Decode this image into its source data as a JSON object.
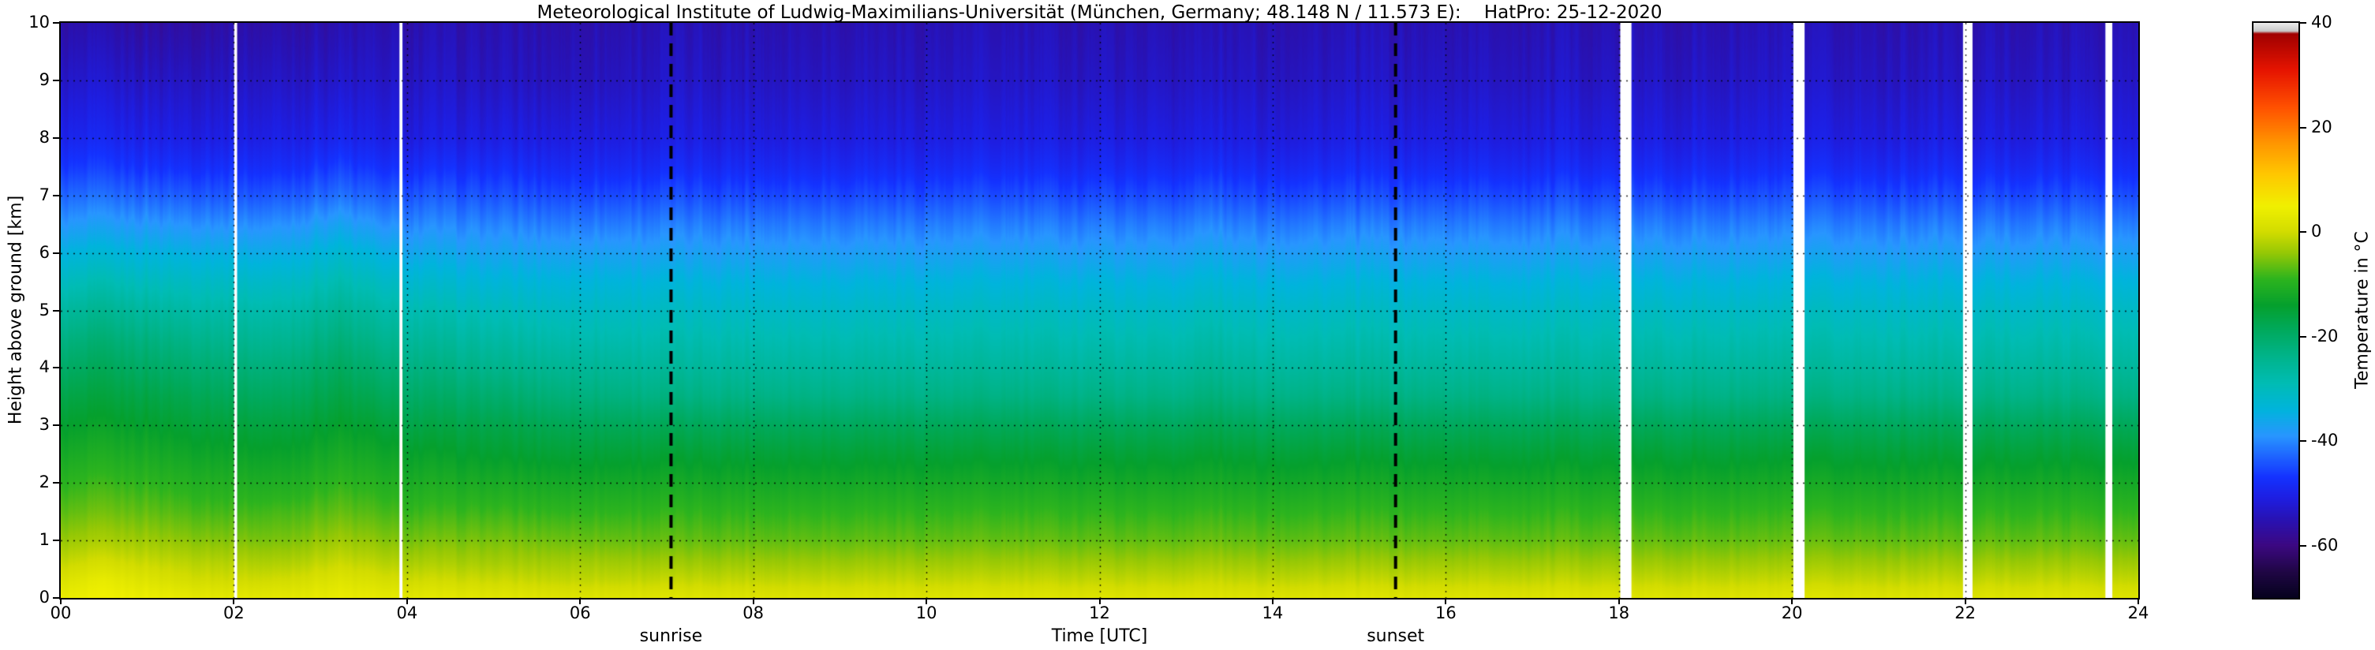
{
  "title": "Meteorological Institute of Ludwig-Maximilians-Universität (München, Germany; 48.148 N / 11.573 E):    HatPro: 25-12-2020",
  "xlabel": "Time [UTC]",
  "ylabel": "Height above ground [km]",
  "colorbar_label": "Temperature in °C",
  "annotations": {
    "sunrise": {
      "label": "sunrise",
      "time": 7.05
    },
    "sunset": {
      "label": "sunset",
      "time": 15.42
    }
  },
  "chart_data": {
    "type": "heatmap",
    "title": "HatPro temperature profile 25-12-2020",
    "x_range": [
      0,
      24
    ],
    "y_range": [
      0,
      10
    ],
    "x_ticks": [
      "00",
      "02",
      "04",
      "06",
      "08",
      "10",
      "12",
      "14",
      "16",
      "18",
      "20",
      "22",
      "24"
    ],
    "x_tick_values": [
      0,
      2,
      4,
      6,
      8,
      10,
      12,
      14,
      16,
      18,
      20,
      22,
      24
    ],
    "y_ticks": [
      "0",
      "1",
      "2",
      "3",
      "4",
      "5",
      "6",
      "7",
      "8",
      "9",
      "10"
    ],
    "y_tick_values": [
      0,
      1,
      2,
      3,
      4,
      5,
      6,
      7,
      8,
      9,
      10
    ],
    "grid": {
      "style": "dotted",
      "x_step": 2,
      "y_step": 1
    },
    "colorbar": {
      "range": [
        -70,
        40
      ],
      "ticks": [
        "40",
        "20",
        "0",
        "-20",
        "-40",
        "-60"
      ],
      "tick_values": [
        40,
        20,
        0,
        -20,
        -40,
        -60
      ],
      "stops": [
        [
          -70,
          "#06021e"
        ],
        [
          -65,
          "#200646"
        ],
        [
          -60,
          "#3c0882"
        ],
        [
          -55,
          "#2812b4"
        ],
        [
          -51,
          "#1e1ee1"
        ],
        [
          -47,
          "#1432ff"
        ],
        [
          -43,
          "#1e64ff"
        ],
        [
          -39,
          "#2896ff"
        ],
        [
          -34,
          "#00b4dc"
        ],
        [
          -29,
          "#00bcb4"
        ],
        [
          -24,
          "#00b48c"
        ],
        [
          -19,
          "#00aa5f"
        ],
        [
          -14,
          "#05a02d"
        ],
        [
          -9,
          "#2db41e"
        ],
        [
          -4,
          "#96c805"
        ],
        [
          0,
          "#d2dc00"
        ],
        [
          5,
          "#f0f000"
        ],
        [
          11,
          "#ffc800"
        ],
        [
          17,
          "#ff9600"
        ],
        [
          24,
          "#ff5000"
        ],
        [
          31,
          "#e61400"
        ],
        [
          38,
          "#a00000"
        ],
        [
          38.5,
          "#c8c8c8"
        ],
        [
          40,
          "#ebebeb"
        ]
      ]
    },
    "heights": [
      0,
      0.3,
      0.6,
      1,
      1.5,
      2,
      2.5,
      3,
      3.5,
      4,
      4.5,
      5,
      5.5,
      6,
      6.5,
      7,
      7.5,
      8,
      9,
      10
    ],
    "times": [
      0,
      0.5,
      1,
      1.5,
      2,
      2.5,
      3.2,
      3.6,
      4,
      5,
      6,
      7,
      9,
      12,
      13,
      13.3,
      13.6,
      15,
      18,
      21,
      24
    ],
    "temperature": [
      [
        4,
        1.5,
        -1,
        -4,
        -7,
        -9.5,
        -12,
        -14.5,
        -17,
        -20,
        -23,
        -26.5,
        -30.5,
        -34.5,
        -39,
        -43,
        -47,
        -50,
        -53.5,
        -56.5
      ],
      [
        5,
        3.5,
        0.5,
        -3,
        -6,
        -8.5,
        -11,
        -13.5,
        -16,
        -18.5,
        -21.5,
        -25,
        -29,
        -33.5,
        -38,
        -42.5,
        -46.5,
        -49.5,
        -53,
        -56
      ],
      [
        4.5,
        2,
        -0.5,
        -3.5,
        -6.5,
        -9,
        -11.5,
        -14,
        -16.5,
        -19.5,
        -22.5,
        -26,
        -30,
        -34,
        -38.5,
        -43,
        -47,
        -50,
        -53.5,
        -56.5
      ],
      [
        3.5,
        0.5,
        -1.5,
        -4.5,
        -7.5,
        -10,
        -12.5,
        -15,
        -17.5,
        -20.5,
        -23.5,
        -27,
        -30.5,
        -34.5,
        -39,
        -43.5,
        -47.5,
        -50.5,
        -53.5,
        -56.5
      ],
      [
        3,
        0,
        -2,
        -5,
        -8,
        -10.5,
        -13,
        -15.5,
        -18.5,
        -21.5,
        -24.5,
        -27.5,
        -31,
        -35,
        -39.5,
        -44,
        -47.5,
        -50.5,
        -53.5,
        -56
      ],
      [
        3,
        0,
        -2.5,
        -5.5,
        -8,
        -11,
        -13.5,
        -16,
        -19,
        -22,
        -25,
        -28,
        -31.5,
        -35.5,
        -39.5,
        -44,
        -48,
        -50.5,
        -53.5,
        -56
      ],
      [
        4,
        2,
        -0.5,
        -3.5,
        -6.5,
        -9,
        -11.5,
        -14,
        -16.5,
        -19,
        -22,
        -25,
        -28.5,
        -32.5,
        -37,
        -42,
        -46,
        -49.5,
        -53,
        -55.5
      ],
      [
        3.5,
        1,
        -1.5,
        -4.5,
        -7.5,
        -10,
        -12.5,
        -15,
        -18,
        -21,
        -24,
        -27,
        -30.5,
        -34.5,
        -39,
        -43.5,
        -47.5,
        -50.5,
        -53.5,
        -55.5
      ],
      [
        3,
        0,
        -2.5,
        -5.5,
        -8.5,
        -11,
        -13.5,
        -16.5,
        -19.5,
        -22.5,
        -25.5,
        -28.5,
        -32,
        -36,
        -40,
        -44,
        -48,
        -51,
        -53.5,
        -55.5
      ],
      [
        2.5,
        -0.5,
        -3,
        -5.5,
        -8.5,
        -11.5,
        -14.5,
        -17,
        -20.5,
        -24,
        -27,
        -30,
        -33.5,
        -37,
        -40.5,
        -44.5,
        -48,
        -51,
        -54,
        -55.5
      ],
      [
        2,
        -1,
        -3,
        -6,
        -9,
        -12,
        -15,
        -18,
        -22,
        -25,
        -28,
        -30.5,
        -33.5,
        -37,
        -41,
        -45,
        -48.5,
        -51,
        -54,
        -55.5
      ],
      [
        2,
        -1,
        -3.5,
        -6.5,
        -9,
        -12,
        -15,
        -18.5,
        -23,
        -26,
        -28.5,
        -31,
        -34,
        -37.5,
        -41,
        -45,
        -48.5,
        -51,
        -53.5,
        -55
      ],
      [
        2,
        -1,
        -3.5,
        -6.5,
        -9,
        -12,
        -15,
        -18.5,
        -23,
        -26,
        -28.5,
        -31,
        -34,
        -37.5,
        -41,
        -45,
        -48.5,
        -51,
        -53.5,
        -55
      ],
      [
        2,
        -1,
        -3.5,
        -6.5,
        -9,
        -12,
        -15,
        -18.5,
        -23,
        -26,
        -28.5,
        -31,
        -34,
        -37.5,
        -41,
        -45,
        -48.5,
        -51,
        -53.5,
        -55
      ],
      [
        2,
        -1,
        -3.5,
        -6.5,
        -9,
        -12,
        -15,
        -18.5,
        -23,
        -26,
        -28.5,
        -31,
        -34,
        -37.5,
        -41,
        -45,
        -48.5,
        -51,
        -53.5,
        -55
      ],
      [
        2,
        -0.5,
        -3,
        -6,
        -8.5,
        -11.5,
        -14.3,
        -17.5,
        -21.8,
        -24.8,
        -27.3,
        -29.8,
        -32.8,
        -36.2,
        -39.8,
        -43.8,
        -47.5,
        -50.3,
        -53.2,
        -54.8
      ],
      [
        2,
        -1,
        -3.5,
        -6.5,
        -9,
        -12,
        -15,
        -18.5,
        -23,
        -26,
        -28.5,
        -31,
        -34,
        -37.5,
        -41,
        -45,
        -48.5,
        -51,
        -53.5,
        -55
      ],
      [
        2,
        -1,
        -3.5,
        -6.5,
        -9,
        -12,
        -15,
        -18.5,
        -23,
        -26,
        -28.5,
        -31,
        -34,
        -37.5,
        -41,
        -45,
        -48.5,
        -51,
        -53.5,
        -55
      ],
      [
        2,
        -1,
        -3.5,
        -6.5,
        -9,
        -12,
        -15,
        -18.5,
        -23,
        -26,
        -28.5,
        -31,
        -34,
        -37.5,
        -41,
        -45,
        -48.5,
        -51,
        -53.5,
        -55
      ],
      [
        2,
        -1,
        -3.5,
        -6.5,
        -9,
        -12,
        -15,
        -18.5,
        -23,
        -26,
        -28.5,
        -31,
        -34,
        -37.5,
        -41,
        -45,
        -48.5,
        -51,
        -53.5,
        -55
      ],
      [
        2,
        -1,
        -3.5,
        -6.5,
        -9,
        -12,
        -15,
        -18.5,
        -23,
        -26,
        -28.5,
        -31,
        -34,
        -37.5,
        -41,
        -45,
        -48.5,
        -51,
        -53.5,
        -55
      ]
    ],
    "missing_data_times": [
      {
        "t": 2.02,
        "w": 0.035
      },
      {
        "t": 3.93,
        "w": 0.035
      },
      {
        "t": 18.08,
        "w": 0.13
      },
      {
        "t": 20.08,
        "w": 0.13
      },
      {
        "t": 22.03,
        "w": 0.11
      },
      {
        "t": 23.66,
        "w": 0.08
      }
    ]
  }
}
